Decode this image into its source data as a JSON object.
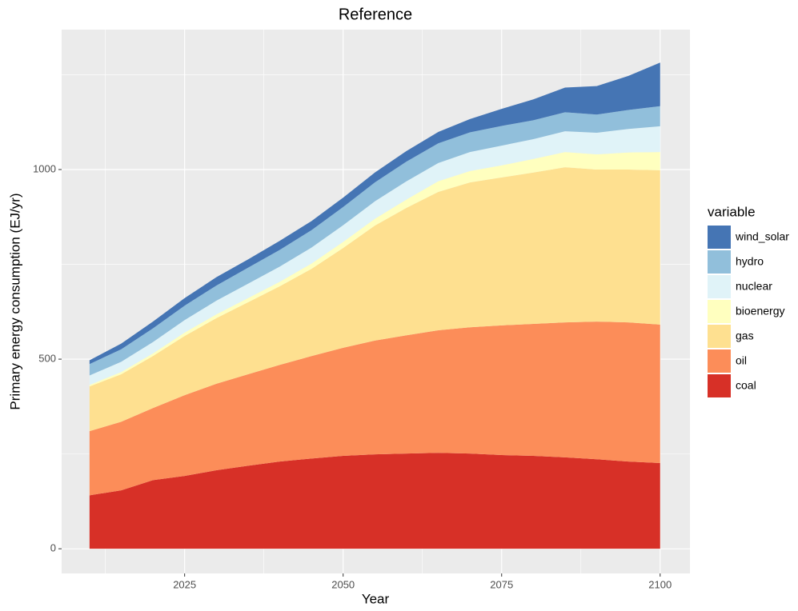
{
  "chart_data": {
    "type": "area",
    "title": "Reference",
    "x_label": "Year",
    "y_label": "Primary energy consumption (EJ/yr)",
    "legend_title": "variable",
    "x": [
      2010,
      2015,
      2020,
      2025,
      2030,
      2035,
      2040,
      2045,
      2050,
      2055,
      2060,
      2065,
      2070,
      2075,
      2080,
      2085,
      2090,
      2095,
      2100
    ],
    "series": [
      {
        "name": "coal",
        "color": "#d73027",
        "values": [
          141,
          154,
          181,
          192,
          207,
          219,
          230,
          238,
          245,
          249,
          251,
          253,
          251,
          247,
          245,
          241,
          236,
          230,
          226
        ]
      },
      {
        "name": "oil",
        "color": "#fc8d59",
        "values": [
          169,
          181,
          190,
          213,
          228,
          241,
          255,
          270,
          285,
          300,
          312,
          323,
          333,
          342,
          348,
          356,
          363,
          367,
          365
        ]
      },
      {
        "name": "gas",
        "color": "#fee090",
        "values": [
          118,
          125,
          137,
          156,
          173,
          190,
          207,
          230,
          263,
          303,
          336,
          365,
          382,
          390,
          399,
          409,
          401,
          403,
          407
        ]
      },
      {
        "name": "bioenergy",
        "color": "#ffffbf",
        "values": [
          4,
          6,
          7,
          9,
          10,
          11,
          12,
          14,
          16,
          18,
          22,
          28,
          30,
          32,
          36,
          40,
          40,
          45,
          48
        ]
      },
      {
        "name": "nuclear",
        "color": "#e0f3f8",
        "values": [
          25,
          27,
          30,
          33,
          36,
          38,
          40,
          42,
          44,
          46,
          48,
          48,
          50,
          52,
          52,
          55,
          57,
          62,
          68
        ]
      },
      {
        "name": "hydro",
        "color": "#91bfdb",
        "values": [
          30,
          33,
          36,
          38,
          40,
          42,
          44,
          46,
          48,
          50,
          52,
          52,
          52,
          52,
          50,
          50,
          48,
          50,
          53
        ]
      },
      {
        "name": "wind_solar",
        "color": "#4575b4",
        "values": [
          10,
          15,
          18,
          20,
          22,
          22,
          24,
          24,
          25,
          26,
          28,
          30,
          35,
          45,
          55,
          65,
          75,
          90,
          115
        ]
      }
    ],
    "xlim": [
      2005.6,
      2104.7
    ],
    "ylim": [
      -65,
      1369
    ],
    "xticks": [
      2025,
      2050,
      2075,
      2100
    ],
    "yticks": [
      0,
      500,
      1000
    ],
    "grid": true,
    "legend": "right"
  }
}
